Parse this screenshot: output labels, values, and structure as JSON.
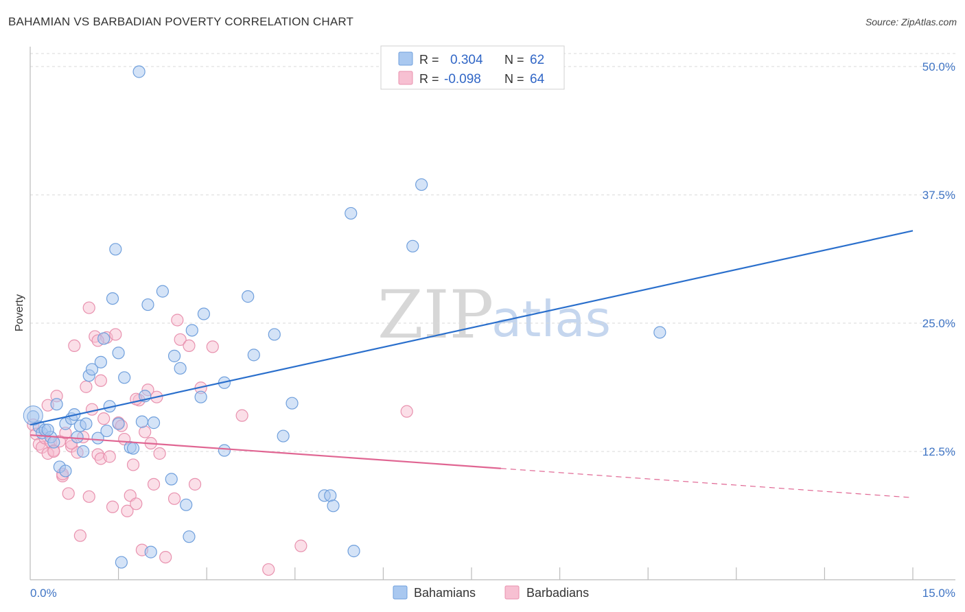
{
  "header": {
    "title": "BAHAMIAN VS BARBADIAN POVERTY CORRELATION CHART",
    "source": "Source: ZipAtlas.com"
  },
  "watermark": {
    "zip": "ZIP",
    "atlas": "atlas"
  },
  "legend_box": {
    "rows": [
      {
        "r_label": "R =",
        "r_value": "0.304",
        "n_label": "N =",
        "n_value": "62"
      },
      {
        "r_label": "R =",
        "r_value": "-0.098",
        "n_label": "N =",
        "n_value": "64"
      }
    ]
  },
  "bottom_legend": {
    "series1": "Bahamians",
    "series2": "Barbadians"
  },
  "colors": {
    "bahamians_fill": "#a9c8f0",
    "bahamians_stroke": "#6f9fdc",
    "bahamians_line": "#2a6fcc",
    "barbadians_fill": "#f7c0d2",
    "barbadians_stroke": "#e891ae",
    "barbadians_line": "#e06592",
    "tick_label": "#3f74c4",
    "grid": "#d8d8d8"
  },
  "chart_data": {
    "type": "scatter",
    "title": "BAHAMIAN VS BARBADIAN POVERTY CORRELATION CHART",
    "xlabel": "",
    "ylabel": "Poverty",
    "xlim": [
      0,
      15
    ],
    "ylim": [
      0,
      50
    ],
    "x_tick_labels": [
      "0.0%",
      "15.0%"
    ],
    "y_ticks": [
      12.5,
      25.0,
      37.5,
      50.0
    ],
    "y_tick_labels": [
      "12.5%",
      "25.0%",
      "37.5%",
      "50.0%"
    ],
    "grid": true,
    "legend_position": "top-center",
    "series": [
      {
        "name": "Bahamians",
        "R": 0.304,
        "N": 62,
        "trend": {
          "x": [
            0,
            15
          ],
          "y": [
            15.1,
            34.0
          ],
          "dashed_from": null
        },
        "points": [
          [
            0.05,
            15.9
          ],
          [
            0.15,
            14.9
          ],
          [
            0.2,
            14.3
          ],
          [
            0.25,
            14.6
          ],
          [
            0.35,
            13.9
          ],
          [
            0.4,
            13.4
          ],
          [
            0.45,
            17.1
          ],
          [
            0.5,
            11.0
          ],
          [
            0.6,
            15.2
          ],
          [
            0.6,
            10.6
          ],
          [
            0.7,
            15.7
          ],
          [
            0.75,
            16.1
          ],
          [
            0.8,
            13.9
          ],
          [
            0.85,
            15.0
          ],
          [
            0.9,
            12.5
          ],
          [
            0.95,
            15.2
          ],
          [
            1.0,
            19.9
          ],
          [
            1.05,
            20.5
          ],
          [
            1.15,
            13.8
          ],
          [
            1.2,
            21.2
          ],
          [
            1.25,
            23.5
          ],
          [
            1.3,
            14.5
          ],
          [
            1.35,
            16.9
          ],
          [
            1.4,
            27.4
          ],
          [
            1.45,
            32.2
          ],
          [
            1.5,
            15.2
          ],
          [
            1.5,
            22.1
          ],
          [
            1.6,
            19.7
          ],
          [
            1.7,
            12.9
          ],
          [
            1.75,
            12.8
          ],
          [
            1.85,
            49.5
          ],
          [
            1.9,
            15.4
          ],
          [
            1.95,
            17.9
          ],
          [
            2.0,
            26.8
          ],
          [
            2.1,
            15.3
          ],
          [
            2.25,
            28.1
          ],
          [
            2.4,
            9.8
          ],
          [
            2.45,
            21.8
          ],
          [
            2.55,
            20.6
          ],
          [
            2.65,
            7.3
          ],
          [
            2.7,
            4.2
          ],
          [
            2.75,
            24.3
          ],
          [
            2.9,
            17.8
          ],
          [
            2.95,
            25.9
          ],
          [
            3.3,
            19.2
          ],
          [
            3.3,
            12.6
          ],
          [
            3.7,
            27.6
          ],
          [
            3.8,
            21.9
          ],
          [
            4.15,
            23.9
          ],
          [
            4.3,
            14.0
          ],
          [
            4.45,
            17.2
          ],
          [
            5.0,
            8.2
          ],
          [
            5.1,
            8.2
          ],
          [
            5.15,
            7.2
          ],
          [
            5.45,
            35.7
          ],
          [
            5.5,
            2.8
          ],
          [
            6.5,
            32.5
          ],
          [
            6.65,
            38.5
          ],
          [
            1.55,
            1.7
          ],
          [
            2.05,
            2.7
          ],
          [
            10.7,
            24.1
          ],
          [
            0.3,
            14.6
          ]
        ]
      },
      {
        "name": "Barbadians",
        "R": -0.098,
        "N": 64,
        "trend": {
          "x": [
            0,
            15
          ],
          "y": [
            14.1,
            8.0
          ],
          "dashed_from": 8.0
        },
        "points": [
          [
            0.05,
            15.1
          ],
          [
            0.1,
            14.2
          ],
          [
            0.15,
            13.2
          ],
          [
            0.2,
            12.9
          ],
          [
            0.25,
            13.8
          ],
          [
            0.3,
            17.0
          ],
          [
            0.35,
            13.4
          ],
          [
            0.4,
            12.6
          ],
          [
            0.45,
            17.9
          ],
          [
            0.5,
            13.5
          ],
          [
            0.55,
            10.1
          ],
          [
            0.6,
            14.3
          ],
          [
            0.65,
            8.4
          ],
          [
            0.7,
            13.0
          ],
          [
            0.75,
            22.8
          ],
          [
            0.8,
            12.4
          ],
          [
            0.85,
            4.3
          ],
          [
            0.9,
            13.9
          ],
          [
            0.95,
            18.8
          ],
          [
            1.0,
            8.1
          ],
          [
            1.05,
            16.6
          ],
          [
            1.1,
            23.7
          ],
          [
            1.15,
            12.2
          ],
          [
            1.2,
            11.8
          ],
          [
            1.25,
            15.7
          ],
          [
            1.3,
            23.6
          ],
          [
            1.35,
            12.0
          ],
          [
            1.4,
            7.1
          ],
          [
            1.45,
            23.9
          ],
          [
            1.5,
            15.3
          ],
          [
            1.55,
            15.0
          ],
          [
            1.6,
            13.7
          ],
          [
            1.65,
            6.7
          ],
          [
            1.7,
            8.2
          ],
          [
            1.75,
            11.2
          ],
          [
            1.8,
            7.4
          ],
          [
            1.85,
            17.5
          ],
          [
            1.9,
            2.9
          ],
          [
            1.95,
            14.4
          ],
          [
            2.0,
            18.5
          ],
          [
            2.05,
            13.3
          ],
          [
            2.1,
            9.3
          ],
          [
            2.15,
            17.8
          ],
          [
            2.2,
            12.3
          ],
          [
            2.3,
            2.2
          ],
          [
            2.45,
            7.9
          ],
          [
            2.5,
            25.3
          ],
          [
            2.55,
            23.4
          ],
          [
            2.7,
            22.8
          ],
          [
            2.8,
            9.3
          ],
          [
            2.9,
            18.7
          ],
          [
            3.1,
            22.7
          ],
          [
            3.6,
            16.0
          ],
          [
            4.05,
            1.0
          ],
          [
            4.6,
            3.3
          ],
          [
            6.4,
            16.4
          ],
          [
            0.55,
            10.3
          ],
          [
            0.7,
            13.3
          ],
          [
            1.2,
            19.4
          ],
          [
            0.3,
            12.3
          ],
          [
            0.4,
            12.5
          ],
          [
            1.0,
            26.5
          ],
          [
            1.8,
            17.6
          ],
          [
            1.15,
            23.3
          ]
        ]
      }
    ]
  }
}
